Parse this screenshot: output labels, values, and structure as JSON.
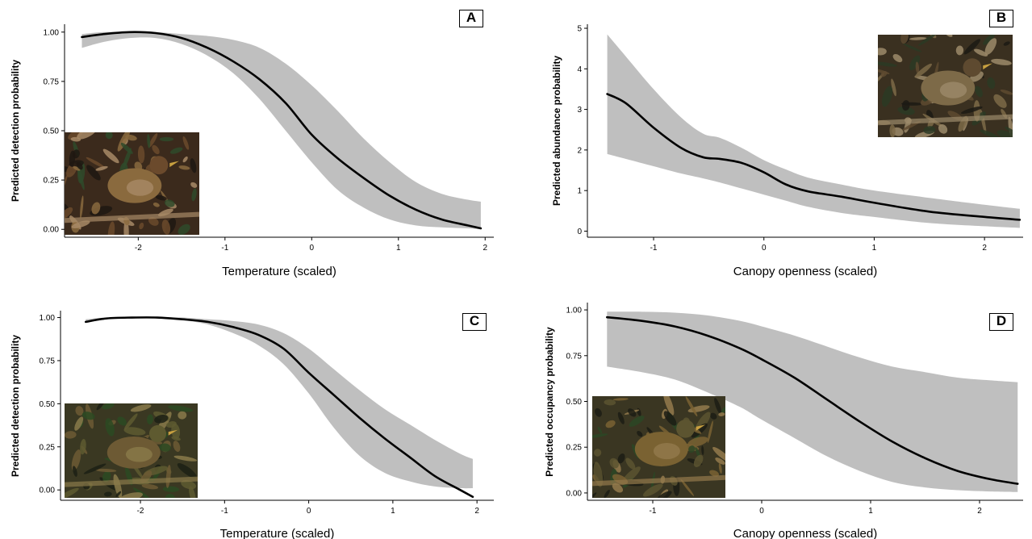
{
  "chart_data": [
    {
      "type": "line",
      "panel_label": "A",
      "xlabel": "Temperature (scaled)",
      "ylabel": "Predicted detection probability",
      "xlim": [
        -2.85,
        2.1
      ],
      "ylim": [
        -0.04,
        1.04
      ],
      "x_ticks": [
        -2,
        -1,
        0,
        1,
        2
      ],
      "y_ticks": [
        0.0,
        0.25,
        0.5,
        0.75,
        1.0
      ],
      "y_tick_labels": [
        "0.00",
        "0.25",
        "0.50",
        "0.75",
        "1.00"
      ],
      "grid": false,
      "band_color": "#bfbfbf",
      "line_color": "#000000",
      "x": [
        -2.65,
        -2.4,
        -2.1,
        -1.8,
        -1.5,
        -1.2,
        -0.9,
        -0.6,
        -0.3,
        0.0,
        0.3,
        0.6,
        0.9,
        1.2,
        1.5,
        1.8,
        1.95
      ],
      "y": [
        0.975,
        0.99,
        1.0,
        0.995,
        0.97,
        0.92,
        0.85,
        0.76,
        0.64,
        0.48,
        0.36,
        0.26,
        0.17,
        0.1,
        0.05,
        0.02,
        0.005
      ],
      "lower": [
        0.92,
        0.95,
        0.97,
        0.97,
        0.94,
        0.88,
        0.79,
        0.66,
        0.5,
        0.34,
        0.2,
        0.11,
        0.05,
        0.02,
        0.01,
        0.005,
        0.0
      ],
      "upper": [
        0.99,
        1.0,
        1.0,
        1.0,
        0.99,
        0.98,
        0.96,
        0.92,
        0.84,
        0.73,
        0.6,
        0.46,
        0.34,
        0.24,
        0.18,
        0.15,
        0.14
      ],
      "photo_corner": "bottom-left"
    },
    {
      "type": "line",
      "panel_label": "B",
      "xlabel": "Canopy openness (scaled)",
      "ylabel": "Predicted abundance probability",
      "xlim": [
        -1.6,
        2.35
      ],
      "ylim": [
        -0.15,
        5.1
      ],
      "x_ticks": [
        -1,
        0,
        1,
        2
      ],
      "y_ticks": [
        0,
        1,
        2,
        3,
        4,
        5
      ],
      "y_tick_labels": [
        "0",
        "1",
        "2",
        "3",
        "4",
        "5"
      ],
      "grid": false,
      "band_color": "#bfbfbf",
      "line_color": "#000000",
      "x": [
        -1.42,
        -1.25,
        -1.0,
        -0.75,
        -0.55,
        -0.4,
        -0.2,
        0.0,
        0.2,
        0.4,
        0.7,
        1.0,
        1.5,
        2.0,
        2.32
      ],
      "y": [
        3.38,
        3.15,
        2.55,
        2.05,
        1.82,
        1.78,
        1.68,
        1.45,
        1.15,
        0.98,
        0.85,
        0.7,
        0.48,
        0.35,
        0.28
      ],
      "lower": [
        1.9,
        1.78,
        1.6,
        1.42,
        1.3,
        1.2,
        1.05,
        0.9,
        0.75,
        0.6,
        0.45,
        0.35,
        0.2,
        0.12,
        0.08
      ],
      "upper": [
        4.85,
        4.3,
        3.5,
        2.8,
        2.4,
        2.3,
        2.05,
        1.75,
        1.52,
        1.32,
        1.15,
        1.0,
        0.82,
        0.65,
        0.55
      ],
      "photo_corner": "top-right"
    },
    {
      "type": "line",
      "panel_label": "C",
      "xlabel": "Temperature (scaled)",
      "ylabel": "Predicted detection probability",
      "xlim": [
        -2.95,
        2.2
      ],
      "ylim": [
        -0.06,
        1.04
      ],
      "x_ticks": [
        -2,
        -1,
        0,
        1,
        2
      ],
      "y_ticks": [
        0.0,
        0.25,
        0.5,
        0.75,
        1.0
      ],
      "y_tick_labels": [
        "0.00",
        "0.25",
        "0.50",
        "0.75",
        "1.00"
      ],
      "grid": false,
      "band_color": "#bfbfbf",
      "line_color": "#000000",
      "x": [
        -2.65,
        -2.4,
        -2.1,
        -1.8,
        -1.5,
        -1.2,
        -0.9,
        -0.6,
        -0.3,
        0.0,
        0.3,
        0.6,
        0.9,
        1.2,
        1.5,
        1.8,
        1.95
      ],
      "y": [
        0.975,
        0.995,
        1.0,
        1.0,
        0.99,
        0.975,
        0.945,
        0.9,
        0.82,
        0.68,
        0.55,
        0.42,
        0.3,
        0.19,
        0.08,
        0.0,
        -0.04
      ],
      "lower": [
        0.97,
        0.99,
        1.0,
        1.0,
        0.985,
        0.96,
        0.91,
        0.84,
        0.73,
        0.56,
        0.36,
        0.2,
        0.1,
        0.05,
        0.02,
        0.01,
        0.01
      ],
      "upper": [
        0.99,
        1.0,
        1.0,
        1.0,
        1.0,
        0.99,
        0.98,
        0.96,
        0.91,
        0.82,
        0.7,
        0.58,
        0.47,
        0.38,
        0.29,
        0.21,
        0.18
      ],
      "photo_corner": "bottom-left"
    },
    {
      "type": "line",
      "panel_label": "D",
      "xlabel": "Canopy openness (scaled)",
      "ylabel": "Predicted occupancy probability",
      "xlim": [
        -1.6,
        2.4
      ],
      "ylim": [
        -0.04,
        1.04
      ],
      "x_ticks": [
        -1,
        0,
        1,
        2
      ],
      "y_ticks": [
        0.0,
        0.25,
        0.5,
        0.75,
        1.0
      ],
      "y_tick_labels": [
        "0.00",
        "0.25",
        "0.50",
        "0.75",
        "1.00"
      ],
      "grid": false,
      "band_color": "#bfbfbf",
      "line_color": "#000000",
      "x": [
        -1.42,
        -1.1,
        -0.8,
        -0.5,
        -0.2,
        0.0,
        0.3,
        0.6,
        0.9,
        1.2,
        1.5,
        1.8,
        2.1,
        2.35
      ],
      "y": [
        0.96,
        0.94,
        0.91,
        0.86,
        0.79,
        0.73,
        0.63,
        0.51,
        0.39,
        0.28,
        0.19,
        0.12,
        0.075,
        0.05
      ],
      "lower": [
        0.69,
        0.66,
        0.62,
        0.55,
        0.47,
        0.4,
        0.3,
        0.2,
        0.12,
        0.06,
        0.03,
        0.015,
        0.008,
        0.005
      ],
      "upper": [
        0.99,
        0.99,
        0.985,
        0.97,
        0.94,
        0.91,
        0.86,
        0.8,
        0.74,
        0.69,
        0.66,
        0.63,
        0.615,
        0.605
      ],
      "photo_corner": "bottom-left"
    }
  ],
  "photo_palette": {
    "A": [
      "#3b2a1c",
      "#6b4a2c",
      "#8a6a3e",
      "#2f4a2a",
      "#a88a66",
      "#1e1812"
    ],
    "B": [
      "#3a3020",
      "#5e4a30",
      "#7d6a48",
      "#2c3a24",
      "#9c8a6a",
      "#1c1a14"
    ],
    "C": [
      "#3a3822",
      "#5e5a30",
      "#6d5a34",
      "#2c4a22",
      "#8a7a4a",
      "#1c2014"
    ],
    "D": [
      "#3a3622",
      "#5c5430",
      "#7a6232",
      "#2c4624",
      "#947a4c",
      "#1c1c14"
    ]
  }
}
